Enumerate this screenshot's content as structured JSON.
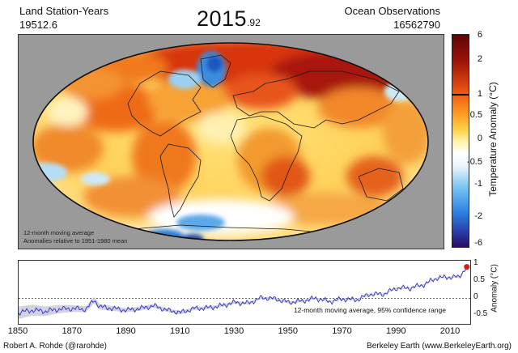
{
  "header": {
    "land_label": "Land Station-Years",
    "land_value": "19512.6",
    "year_main": "2015",
    "year_frac": ".92",
    "ocean_label": "Ocean Observations",
    "ocean_value": "16562790"
  },
  "map": {
    "note_line1": "12-month moving average",
    "note_line2": "Anomalies relative to 1951-1980 mean",
    "background_color": "#9a9a9a"
  },
  "colorbar": {
    "title": "Temperature Anomaly (°C)",
    "ticks": [
      "6",
      "2",
      "1",
      "0.5",
      "0",
      "-0.5",
      "-1",
      "-2",
      "-6"
    ],
    "colors": [
      "#2a0a60",
      "#2a3aa8",
      "#2a7fe0",
      "#79c2f2",
      "#eaf5fb",
      "#ffffff",
      "#fff2a6",
      "#ffd24a",
      "#ff9a1f",
      "#e24a12",
      "#9a1208",
      "#5a0606"
    ]
  },
  "timeseries": {
    "yticks": [
      "1",
      "0.5",
      "0",
      "-0.5"
    ],
    "ylabel": "Anomaly (°C)",
    "note": "12-month moving average, 95% confidence range",
    "xticks": [
      "1850",
      "1870",
      "1890",
      "1910",
      "1930",
      "1950",
      "1970",
      "1990",
      "2010"
    ],
    "line_color": "#3a3acc",
    "band_color": "#c8c8d8",
    "marker_color": "#e01818"
  },
  "footer": {
    "left": "Robert A. Rohde (@rarohde)",
    "right": "Berkeley Earth (www.BerkeleyEarth.org)"
  },
  "chart_data": {
    "type": "line",
    "xlabel": "",
    "ylabel": "Anomaly (°C)",
    "xlim": [
      1850,
      2016
    ],
    "ylim": [
      -0.75,
      1.1
    ],
    "series": [
      {
        "x": [
          1850,
          1855,
          1860,
          1865,
          1870,
          1875,
          1878,
          1880,
          1885,
          1890,
          1895,
          1900,
          1905,
          1910,
          1915,
          1920,
          1925,
          1930,
          1935,
          1940,
          1945,
          1950,
          1955,
          1960,
          1965,
          1970,
          1975,
          1980,
          1985,
          1990,
          1995,
          2000,
          2005,
          2010,
          2013,
          2015.92
        ],
        "values": [
          -0.42,
          -0.35,
          -0.38,
          -0.32,
          -0.3,
          -0.32,
          -0.05,
          -0.25,
          -0.3,
          -0.35,
          -0.3,
          -0.22,
          -0.35,
          -0.42,
          -0.3,
          -0.28,
          -0.22,
          -0.12,
          -0.15,
          0.02,
          -0.02,
          -0.12,
          -0.08,
          0.0,
          -0.1,
          -0.02,
          -0.05,
          0.12,
          0.12,
          0.3,
          0.3,
          0.4,
          0.6,
          0.62,
          0.62,
          0.92
        ]
      }
    ],
    "band_halfwidth": [
      0.18,
      0.16,
      0.14,
      0.12,
      0.1,
      0.09,
      0.09,
      0.08,
      0.07,
      0.06,
      0.06,
      0.05,
      0.05,
      0.05,
      0.04,
      0.04,
      0.04,
      0.04,
      0.03,
      0.03,
      0.03,
      0.03,
      0.03,
      0.02,
      0.02,
      0.02,
      0.02,
      0.02,
      0.02,
      0.02,
      0.02,
      0.02,
      0.02,
      0.02,
      0.02,
      0.02
    ]
  }
}
